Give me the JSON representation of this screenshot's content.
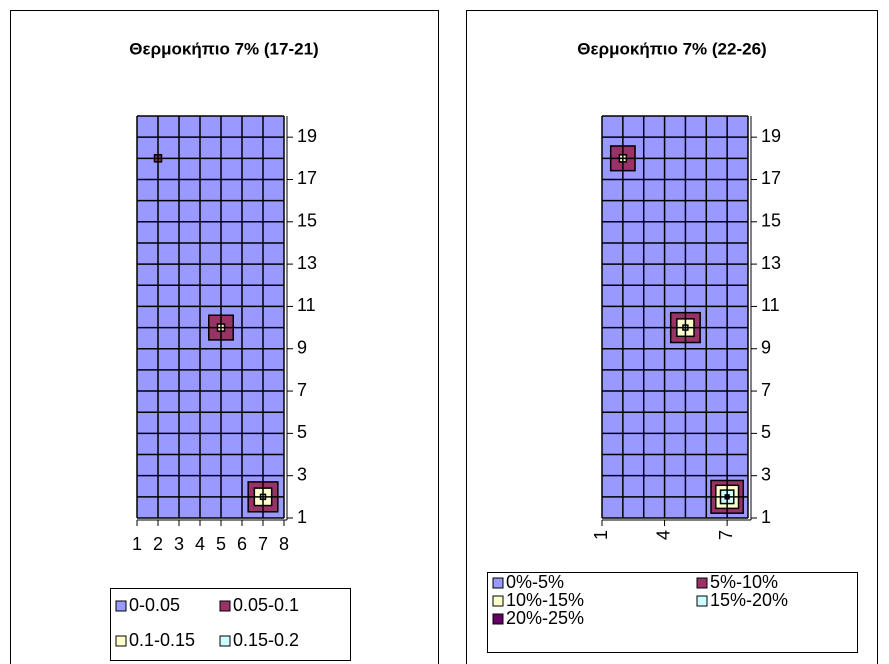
{
  "chart_data": [
    {
      "type": "contour",
      "title": "Θερμοκήπιο 7% (17-21)",
      "x": [
        7,
        5,
        2
      ],
      "y": [
        2,
        10,
        18
      ],
      "values": [
        0.17,
        0.12,
        0.06
      ],
      "xlim": [
        1,
        8
      ],
      "ylim": [
        1,
        20
      ],
      "xticks": [
        1,
        2,
        3,
        4,
        5,
        6,
        7,
        8
      ],
      "yticks": [
        1,
        3,
        5,
        7,
        9,
        11,
        13,
        15,
        17,
        19
      ],
      "grid": true,
      "bands": [
        {
          "label": "0-0.05",
          "from": 0,
          "to": 0.05,
          "color": "#9999ff"
        },
        {
          "label": "0.05-0.1",
          "from": 0.05,
          "to": 0.1,
          "color": "#993366"
        },
        {
          "label": "0.1-0.15",
          "from": 0.1,
          "to": 0.15,
          "color": "#ffffcc"
        },
        {
          "label": "0.15-0.2",
          "from": 0.15,
          "to": 0.2,
          "color": "#ccffff"
        }
      ]
    },
    {
      "type": "contour",
      "title": "Θερμοκήπιο 7% (22-26)",
      "x": [
        7,
        5,
        2
      ],
      "y": [
        2,
        10,
        18
      ],
      "values": [
        22,
        17,
        12
      ],
      "xlim": [
        1,
        8
      ],
      "ylim": [
        1,
        20
      ],
      "xticks": [
        1,
        4,
        7
      ],
      "yticks": [
        1,
        3,
        5,
        7,
        9,
        11,
        13,
        15,
        17,
        19
      ],
      "grid": true,
      "bands": [
        {
          "label": "0%-5%",
          "from": 0,
          "to": 5,
          "color": "#9999ff"
        },
        {
          "label": "5%-10%",
          "from": 5,
          "to": 10,
          "color": "#993366"
        },
        {
          "label": "10%-15%",
          "from": 10,
          "to": 15,
          "color": "#ffffcc"
        },
        {
          "label": "15%-20%",
          "from": 15,
          "to": 20,
          "color": "#ccffff"
        },
        {
          "label": "20%-25%",
          "from": 20,
          "to": 25,
          "color": "#660066"
        }
      ]
    }
  ]
}
